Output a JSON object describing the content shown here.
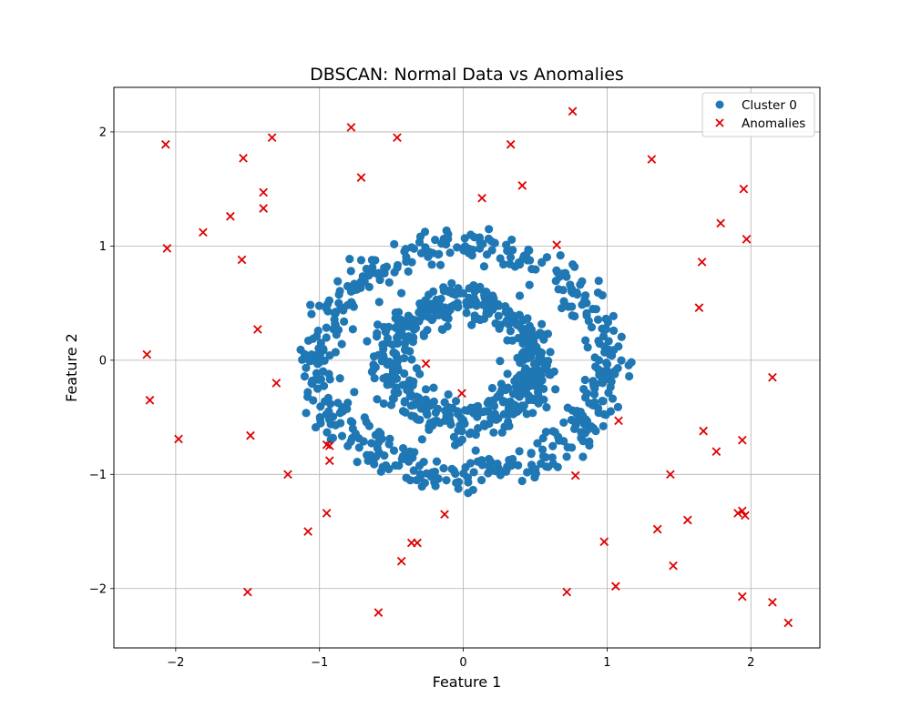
{
  "chart_data": {
    "type": "scatter",
    "title": "DBSCAN: Normal Data vs Anomalies",
    "xlabel": "Feature 1",
    "ylabel": "Feature 2",
    "xlim": [
      -2.43,
      2.48
    ],
    "ylim": [
      -2.52,
      2.39
    ],
    "xticks": [
      -2,
      -1,
      0,
      1,
      2
    ],
    "yticks": [
      -2,
      -1,
      0,
      1,
      2
    ],
    "xtick_labels": [
      "−2",
      "−1",
      "0",
      "1",
      "2"
    ],
    "ytick_labels": [
      "−2",
      "−1",
      "0",
      "1",
      "2"
    ],
    "grid": true,
    "legend_position": "top-right",
    "series": [
      {
        "name": "Cluster 0",
        "marker": "circle",
        "color": "#1f77b4",
        "description_rings": [
          {
            "radius": 1.0,
            "noise": 0.08,
            "count": 500
          },
          {
            "radius": 0.5,
            "noise": 0.08,
            "count": 500
          }
        ]
      },
      {
        "name": "Anomalies",
        "marker": "x",
        "color": "#e00000",
        "points": [
          [
            -2.07,
            1.89
          ],
          [
            -2.06,
            0.98
          ],
          [
            -1.81,
            1.12
          ],
          [
            -1.62,
            1.26
          ],
          [
            -1.53,
            1.77
          ],
          [
            -1.54,
            0.88
          ],
          [
            -1.39,
            1.47
          ],
          [
            -1.39,
            1.33
          ],
          [
            -1.33,
            1.95
          ],
          [
            -1.43,
            0.27
          ],
          [
            -1.3,
            -0.2
          ],
          [
            -1.48,
            -0.66
          ],
          [
            -1.22,
            -1.0
          ],
          [
            -1.08,
            -1.5
          ],
          [
            -0.95,
            -1.34
          ],
          [
            -0.95,
            -0.74
          ],
          [
            -0.93,
            -0.75
          ],
          [
            -0.93,
            -0.88
          ],
          [
            -2.2,
            0.05
          ],
          [
            -2.18,
            -0.35
          ],
          [
            -1.98,
            -0.69
          ],
          [
            -1.5,
            -2.03
          ],
          [
            -0.78,
            2.04
          ],
          [
            -0.71,
            1.6
          ],
          [
            -0.46,
            1.95
          ],
          [
            -0.26,
            -0.03
          ],
          [
            -0.01,
            -0.29
          ],
          [
            -0.13,
            -1.35
          ],
          [
            -0.36,
            -1.6
          ],
          [
            -0.32,
            -1.6
          ],
          [
            -0.43,
            -1.76
          ],
          [
            -0.59,
            -2.21
          ],
          [
            0.33,
            1.89
          ],
          [
            0.13,
            1.42
          ],
          [
            0.41,
            1.53
          ],
          [
            0.65,
            1.01
          ],
          [
            0.76,
            2.18
          ],
          [
            0.78,
            -1.01
          ],
          [
            0.72,
            -2.03
          ],
          [
            0.98,
            -1.59
          ],
          [
            1.06,
            -1.98
          ],
          [
            1.08,
            -0.53
          ],
          [
            1.31,
            1.76
          ],
          [
            1.35,
            -1.48
          ],
          [
            1.44,
            -1.0
          ],
          [
            1.46,
            -1.8
          ],
          [
            1.56,
            -1.4
          ],
          [
            1.64,
            0.46
          ],
          [
            1.66,
            0.86
          ],
          [
            1.67,
            -0.62
          ],
          [
            1.79,
            1.2
          ],
          [
            1.76,
            -0.8
          ],
          [
            1.95,
            1.5
          ],
          [
            1.97,
            1.06
          ],
          [
            1.94,
            -0.7
          ],
          [
            1.91,
            -1.34
          ],
          [
            1.94,
            -1.32
          ],
          [
            1.96,
            -1.36
          ],
          [
            1.94,
            -2.07
          ],
          [
            2.15,
            -0.15
          ],
          [
            2.15,
            -2.12
          ],
          [
            2.26,
            -2.3
          ]
        ]
      }
    ]
  }
}
